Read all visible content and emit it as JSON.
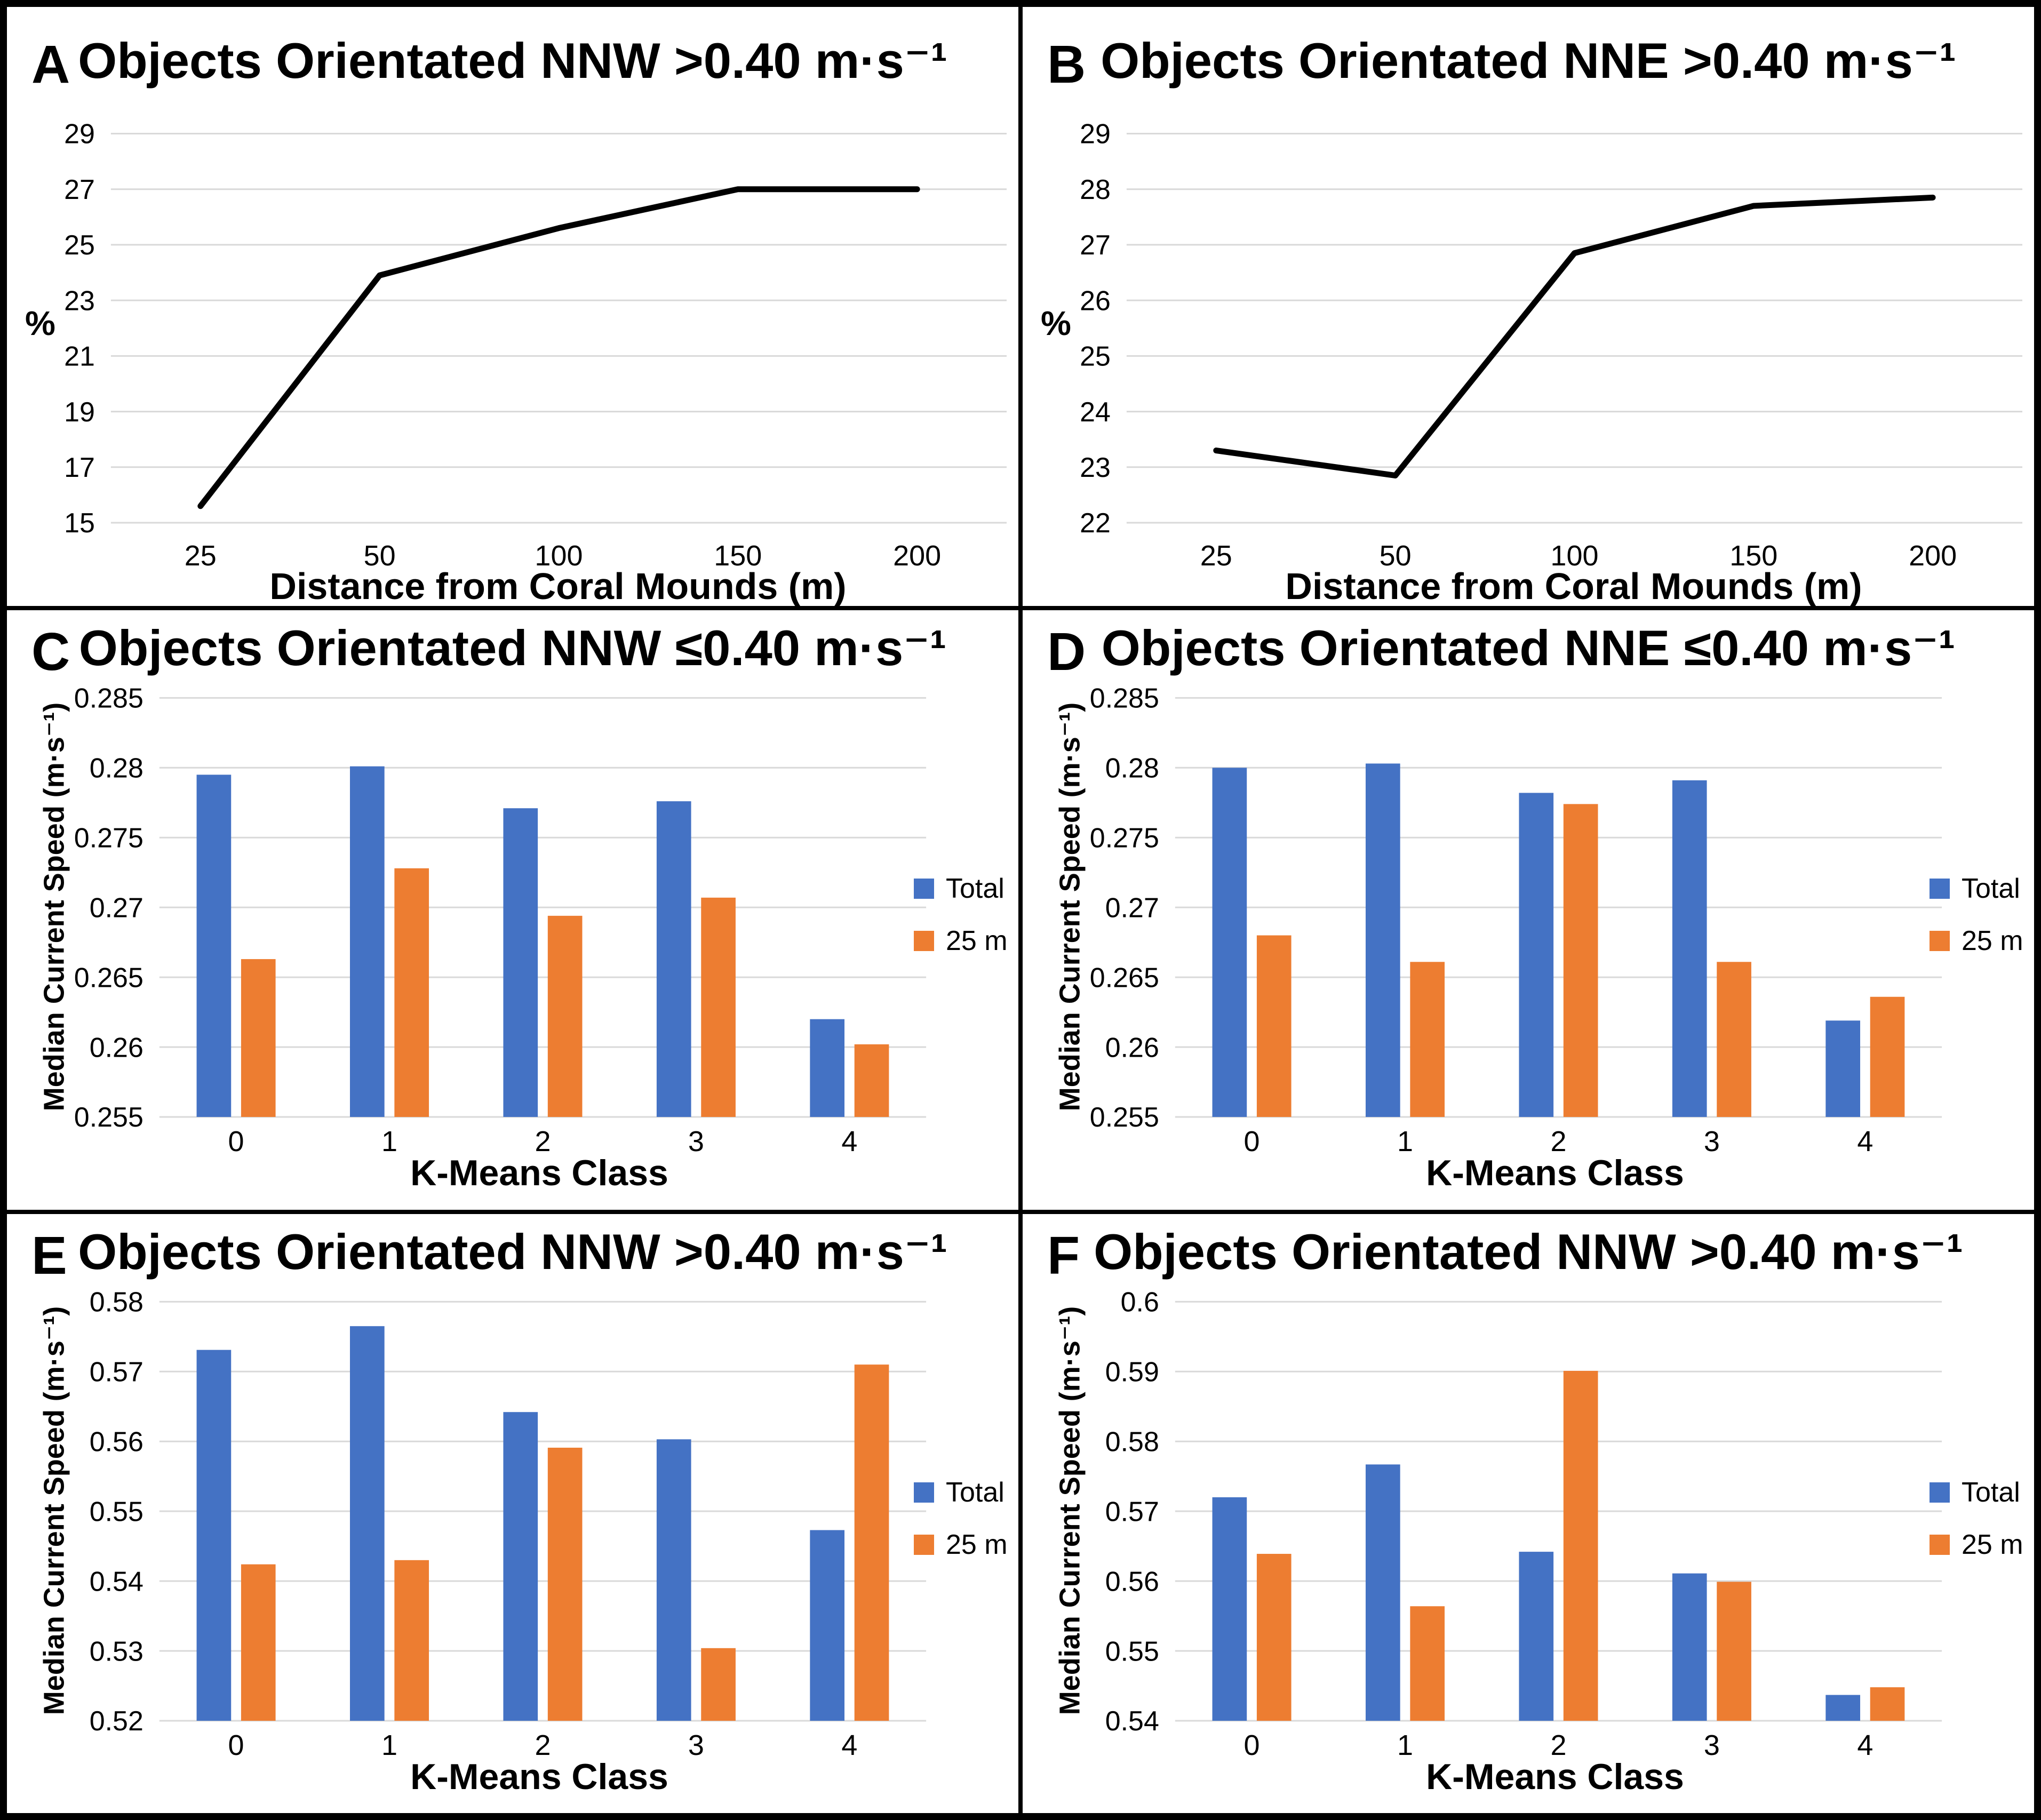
{
  "colors": {
    "series_total": "#4472C4",
    "series_25m": "#ED7D31",
    "line": "#000000",
    "gridline": "#D9D9D9",
    "border": "#000000",
    "background": "#FFFFFF"
  },
  "chart_data": [
    {
      "type": "line",
      "label": "A",
      "title": "Objects Orientated NNW >0.40 m·s⁻¹",
      "xlabel": "Distance from Coral Mounds (m)",
      "ylabel": "%",
      "categories": [
        "25",
        "50",
        "100",
        "150",
        "200"
      ],
      "yticks": [
        "15",
        "17",
        "19",
        "21",
        "23",
        "25",
        "27",
        "29"
      ],
      "ylim": [
        15,
        29
      ],
      "grid": true,
      "legend_position": "none",
      "series": [
        {
          "name": "NNW >0.40 m/s",
          "color": "#000000",
          "values": [
            15.6,
            23.9,
            25.6,
            27.0,
            27.0
          ]
        }
      ]
    },
    {
      "type": "line",
      "label": "B",
      "title": "Objects Orientated NNE >0.40 m·s⁻¹",
      "xlabel": "Distance from Coral Mounds (m)",
      "ylabel": "%",
      "categories": [
        "25",
        "50",
        "100",
        "150",
        "200"
      ],
      "yticks": [
        "22",
        "23",
        "24",
        "25",
        "26",
        "27",
        "28",
        "29"
      ],
      "ylim": [
        22,
        29
      ],
      "grid": true,
      "legend_position": "none",
      "series": [
        {
          "name": "NNE >0.40 m/s",
          "color": "#000000",
          "values": [
            23.3,
            22.85,
            26.85,
            27.7,
            27.85
          ]
        }
      ]
    },
    {
      "type": "bar",
      "label": "C",
      "title": "Objects Orientated NNW ≤0.40 m·s⁻¹",
      "xlabel": "K-Means Class",
      "ylabel": "Median Current Speed (m·s⁻¹)",
      "categories": [
        "0",
        "1",
        "2",
        "3",
        "4"
      ],
      "yticks": [
        "0.255",
        "0.26",
        "0.265",
        "0.27",
        "0.275",
        "0.28",
        "0.285"
      ],
      "ylim": [
        0.255,
        0.285
      ],
      "grid": true,
      "legend_position": "right",
      "series": [
        {
          "name": "Total",
          "color": "#4472C4",
          "values": [
            0.2795,
            0.2801,
            0.2771,
            0.2776,
            0.262
          ]
        },
        {
          "name": "25 m",
          "color": "#ED7D31",
          "values": [
            0.2663,
            0.2728,
            0.2694,
            0.2707,
            0.2602
          ]
        }
      ]
    },
    {
      "type": "bar",
      "label": "D",
      "title": "Objects Orientated NNE ≤0.40 m·s⁻¹",
      "xlabel": "K-Means Class",
      "ylabel": "Median Current Speed (m·s⁻¹)",
      "categories": [
        "0",
        "1",
        "2",
        "3",
        "4"
      ],
      "yticks": [
        "0.255",
        "0.26",
        "0.265",
        "0.27",
        "0.275",
        "0.28",
        "0.285"
      ],
      "ylim": [
        0.255,
        0.285
      ],
      "grid": true,
      "legend_position": "right",
      "series": [
        {
          "name": "Total",
          "color": "#4472C4",
          "values": [
            0.28,
            0.2803,
            0.2782,
            0.2791,
            0.2619
          ]
        },
        {
          "name": "25 m",
          "color": "#ED7D31",
          "values": [
            0.268,
            0.2661,
            0.2774,
            0.2661,
            0.2636
          ]
        }
      ]
    },
    {
      "type": "bar",
      "label": "E",
      "title": "Objects Orientated NNW >0.40 m·s⁻¹",
      "xlabel": "K-Means Class",
      "ylabel": "Median Current Speed (m·s⁻¹)",
      "categories": [
        "0",
        "1",
        "2",
        "3",
        "4"
      ],
      "yticks": [
        "0.52",
        "0.53",
        "0.54",
        "0.55",
        "0.56",
        "0.57",
        "0.58"
      ],
      "ylim": [
        0.52,
        0.58
      ],
      "grid": true,
      "legend_position": "right",
      "series": [
        {
          "name": "Total",
          "color": "#4472C4",
          "values": [
            0.5731,
            0.5765,
            0.5642,
            0.5603,
            0.5473
          ]
        },
        {
          "name": "25 m",
          "color": "#ED7D31",
          "values": [
            0.5424,
            0.543,
            0.5591,
            0.5304,
            0.571
          ]
        }
      ]
    },
    {
      "type": "bar",
      "label": "F",
      "title": "Objects Orientated NNW >0.40 m·s⁻¹",
      "xlabel": "K-Means Class",
      "ylabel": "Median Current Speed (m·s⁻¹)",
      "categories": [
        "0",
        "1",
        "2",
        "3",
        "4"
      ],
      "yticks": [
        "0.54",
        "0.55",
        "0.56",
        "0.57",
        "0.58",
        "0.59",
        "0.6"
      ],
      "ylim": [
        0.54,
        0.6
      ],
      "grid": true,
      "legend_position": "right",
      "series": [
        {
          "name": "Total",
          "color": "#4472C4",
          "values": [
            0.572,
            0.5767,
            0.5642,
            0.5611,
            0.5437
          ]
        },
        {
          "name": "25 m",
          "color": "#ED7D31",
          "values": [
            0.5639,
            0.5564,
            0.5901,
            0.5599,
            0.5448
          ]
        }
      ]
    }
  ]
}
